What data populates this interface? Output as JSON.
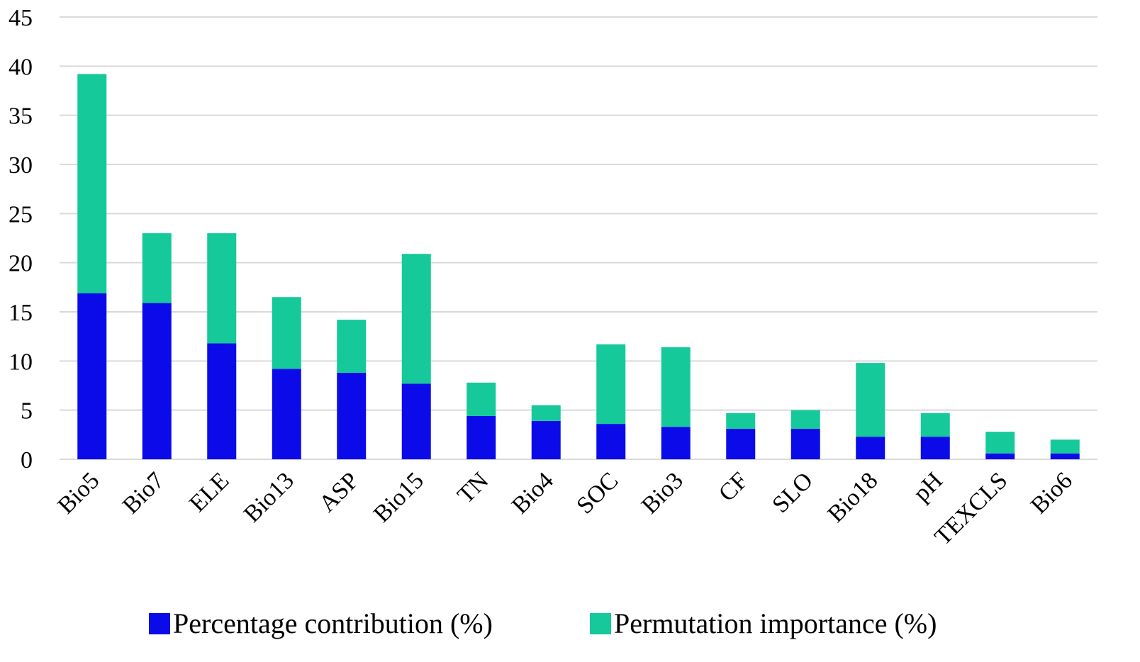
{
  "chart_data": {
    "type": "bar",
    "stacked": true,
    "categories": [
      "Bio5",
      "Bio7",
      "ELE",
      "Bio13",
      "ASP",
      "Bio15",
      "TN",
      "Bio4",
      "SOC",
      "Bio3",
      "CF",
      "SLO",
      "Bio18",
      "pH",
      "TEXCLS",
      "Bio6"
    ],
    "series": [
      {
        "name": "Percentage contribution (%)",
        "color": "#0b0bea",
        "values": [
          16.9,
          15.9,
          11.8,
          9.2,
          8.8,
          7.7,
          4.4,
          3.9,
          3.6,
          3.3,
          3.1,
          3.1,
          2.3,
          2.3,
          0.6,
          0.6
        ]
      },
      {
        "name": "Permutation importance (%)",
        "color": "#15c99a",
        "values": [
          22.3,
          7.1,
          11.2,
          7.3,
          5.4,
          13.2,
          3.4,
          1.6,
          8.1,
          8.1,
          1.6,
          1.9,
          7.5,
          2.4,
          2.2,
          1.4
        ]
      }
    ],
    "title": "",
    "xlabel": "",
    "ylabel": "",
    "ylim": [
      0,
      45
    ],
    "yticks": [
      "0",
      "5",
      "10",
      "15",
      "20",
      "25",
      "30",
      "35",
      "40",
      "45"
    ],
    "grid": true,
    "legend_position": "bottom-center",
    "gridline_color": "#d9d9d9"
  }
}
